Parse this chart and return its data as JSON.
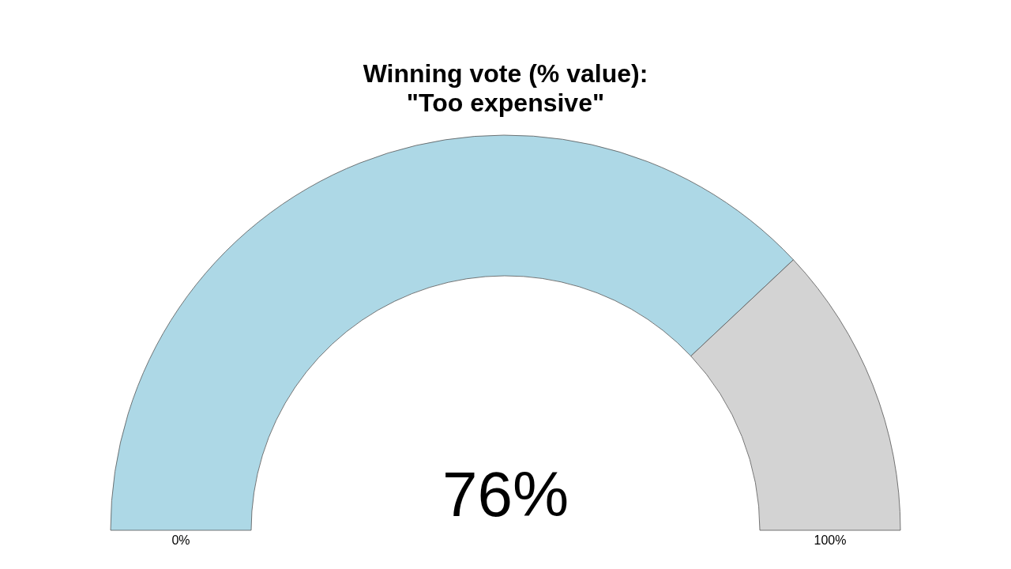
{
  "chart_data": {
    "type": "donut",
    "title": "Winning vote (% value):\n\"Too expensive\"",
    "categories": [
      null,
      null
    ],
    "values": [
      76,
      24
    ],
    "colors": [
      "#add8e6",
      "#d3d3d3"
    ],
    "value_labels": [
      "76%",
      null
    ],
    "annotations": [
      "0%",
      "100%"
    ]
  }
}
